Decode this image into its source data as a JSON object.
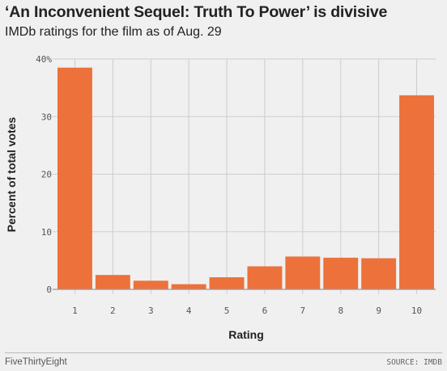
{
  "header": {
    "title": "‘An Inconvenient Sequel: Truth To Power’ is divisive",
    "subtitle": "IMDb ratings for the film as of Aug. 29"
  },
  "footer": {
    "brand": "FiveThirtyEight",
    "source": "SOURCE: IMDB"
  },
  "chart_data": {
    "type": "bar",
    "categories": [
      "1",
      "2",
      "3",
      "4",
      "5",
      "6",
      "7",
      "8",
      "9",
      "10"
    ],
    "values": [
      38.5,
      2.5,
      1.5,
      0.9,
      2.1,
      4.0,
      5.7,
      5.5,
      5.4,
      33.7
    ],
    "xlabel": "Rating",
    "ylabel": "Percent of total votes",
    "ylim": [
      0,
      40
    ],
    "yticks": [
      "0",
      "10",
      "20",
      "30",
      "40%"
    ],
    "grid": true,
    "colors": {
      "bar": "#ed713a",
      "grid": "#cdcdcd",
      "baseline": "#9a9a9a",
      "background": "#f0f0f0"
    }
  }
}
